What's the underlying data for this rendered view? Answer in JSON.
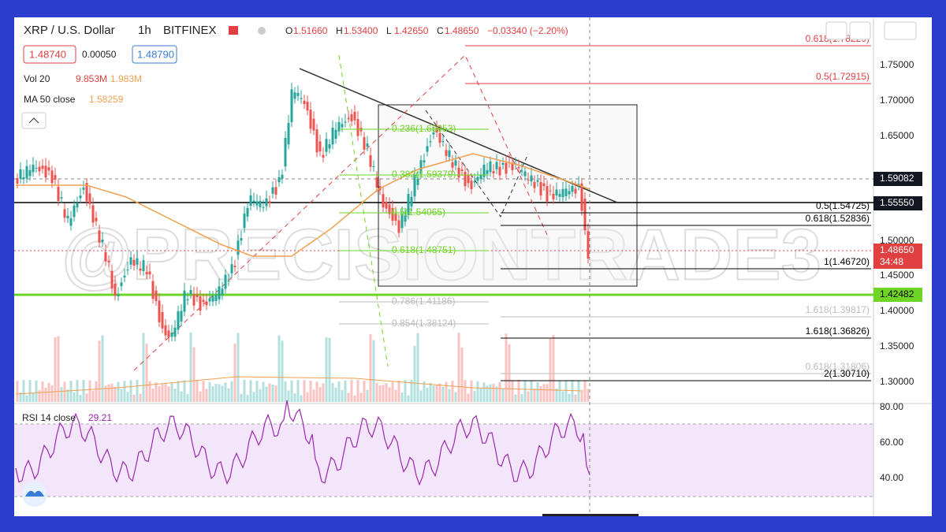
{
  "header": {
    "symbol": "XRP / U.S. Dollar",
    "interval": "1h",
    "exchange": "BITFINEX",
    "ohlc": [
      {
        "key": "O",
        "value": "1.51660"
      },
      {
        "key": "H",
        "value": "1.53400"
      },
      {
        "key": "L",
        "value": "1.42650"
      },
      {
        "key": "C",
        "value": "1.48650"
      }
    ],
    "change": "−0.03340 (−2.20%)"
  },
  "quote": {
    "bid": "1.48740",
    "spread": "0.00050",
    "ask": "1.48790"
  },
  "indicators": {
    "volume": {
      "label": "Vol 20",
      "values": [
        "9.853M",
        "1.983M"
      ]
    },
    "ma": {
      "label": "MA 50 close",
      "value": "1.58259"
    },
    "rsi": {
      "label": "RSI 14 close",
      "value": "29.21"
    }
  },
  "currency": "USD",
  "price_axis": [
    "1.75000",
    "1.70000",
    "1.65000",
    "1.50000",
    "1.45000",
    "1.40000",
    "1.35000",
    "1.30000"
  ],
  "rsi_axis": [
    "80.00",
    "60.00",
    "40.00"
  ],
  "axis_labels": [
    "1.59082",
    "1.55550",
    "1.48650",
    "34:48",
    "1.42482"
  ],
  "fib_left": [
    "0.236(1.65953)",
    "0.382(1.59379)",
    "0.5(1.54065)",
    "0.618(1.48751)",
    "0.786(1.41186)",
    "0.854(1.38124)"
  ],
  "fib_right": [
    "0.618(1.78229)",
    "0.5(1.72915)",
    "0.5(1.54725)",
    "0.618(1.52836)",
    "1(1.46720)",
    "1.618(1.39817)",
    "1.618(1.36826)",
    "0.618(1.31806)",
    "2(1.30710)"
  ],
  "watermark": "@PRECISIONTRADE3"
}
